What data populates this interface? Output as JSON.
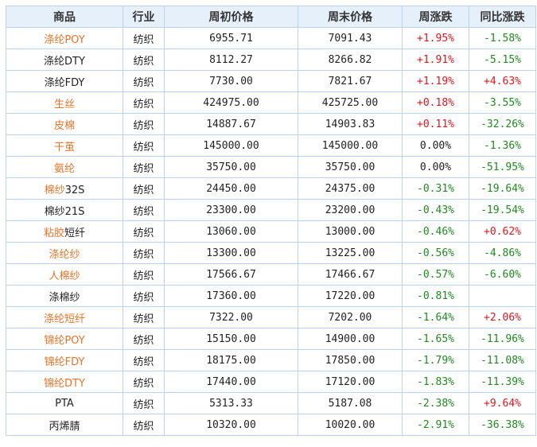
{
  "table": {
    "headers": [
      "商品",
      "行业",
      "周初价格",
      "周末价格",
      "周涨跌",
      "同比涨跌"
    ],
    "rows": [
      {
        "name": "涤纶POY",
        "name_link": true,
        "industry": "纺织",
        "start": "6955.71",
        "end": "7091.43",
        "week": "+1.95%",
        "week_dir": "up",
        "yoy": "-1.58%",
        "yoy_dir": "down"
      },
      {
        "name": "涤纶DTY",
        "name_link": false,
        "industry": "纺织",
        "start": "8112.27",
        "end": "8266.82",
        "week": "+1.91%",
        "week_dir": "up",
        "yoy": "-5.15%",
        "yoy_dir": "down"
      },
      {
        "name": "涤纶FDY",
        "name_link": false,
        "industry": "纺织",
        "start": "7730.00",
        "end": "7821.67",
        "week": "+1.19%",
        "week_dir": "up",
        "yoy": "+4.63%",
        "yoy_dir": "up"
      },
      {
        "name": "生丝",
        "name_link": true,
        "industry": "纺织",
        "start": "424975.00",
        "end": "425725.00",
        "week": "+0.18%",
        "week_dir": "up",
        "yoy": "-3.55%",
        "yoy_dir": "down"
      },
      {
        "name": "皮棉",
        "name_link": true,
        "industry": "纺织",
        "start": "14887.67",
        "end": "14903.83",
        "week": "+0.11%",
        "week_dir": "up",
        "yoy": "-32.26%",
        "yoy_dir": "down"
      },
      {
        "name": "干茧",
        "name_link": true,
        "industry": "纺织",
        "start": "145000.00",
        "end": "145000.00",
        "week": "0.00%",
        "week_dir": "flat",
        "yoy": "-1.36%",
        "yoy_dir": "down"
      },
      {
        "name": "氨纶",
        "name_link": true,
        "industry": "纺织",
        "start": "35750.00",
        "end": "35750.00",
        "week": "0.00%",
        "week_dir": "flat",
        "yoy": "-51.95%",
        "yoy_dir": "down"
      },
      {
        "name": "棉纱32S",
        "name_link": "partial",
        "name_a": "棉纱",
        "name_b": "32S",
        "industry": "纺织",
        "start": "24450.00",
        "end": "24375.00",
        "week": "-0.31%",
        "week_dir": "down",
        "yoy": "-19.64%",
        "yoy_dir": "down"
      },
      {
        "name": "棉纱21S",
        "name_link": false,
        "industry": "纺织",
        "start": "23300.00",
        "end": "23200.00",
        "week": "-0.43%",
        "week_dir": "down",
        "yoy": "-19.54%",
        "yoy_dir": "down"
      },
      {
        "name": "粘胶短纤",
        "name_link": "partial",
        "name_a": "粘胶",
        "name_b": "短纤",
        "industry": "纺织",
        "start": "13060.00",
        "end": "13000.00",
        "week": "-0.46%",
        "week_dir": "down",
        "yoy": "+0.62%",
        "yoy_dir": "up"
      },
      {
        "name": "涤纶纱",
        "name_link": true,
        "industry": "纺织",
        "start": "13300.00",
        "end": "13225.00",
        "week": "-0.56%",
        "week_dir": "down",
        "yoy": "-4.86%",
        "yoy_dir": "down"
      },
      {
        "name": "人棉纱",
        "name_link": true,
        "industry": "纺织",
        "start": "17566.67",
        "end": "17466.67",
        "week": "-0.57%",
        "week_dir": "down",
        "yoy": "-6.60%",
        "yoy_dir": "down"
      },
      {
        "name": "涤棉纱",
        "name_link": false,
        "industry": "纺织",
        "start": "17360.00",
        "end": "17220.00",
        "week": "-0.81%",
        "week_dir": "down",
        "yoy": "",
        "yoy_dir": "flat"
      },
      {
        "name": "涤纶短纤",
        "name_link": true,
        "industry": "纺织",
        "start": "7322.00",
        "end": "7202.00",
        "week": "-1.64%",
        "week_dir": "down",
        "yoy": "+2.06%",
        "yoy_dir": "up"
      },
      {
        "name": "锦纶POY",
        "name_link": true,
        "industry": "纺织",
        "start": "15150.00",
        "end": "14900.00",
        "week": "-1.65%",
        "week_dir": "down",
        "yoy": "-11.96%",
        "yoy_dir": "down"
      },
      {
        "name": "锦纶FDY",
        "name_link": true,
        "industry": "纺织",
        "start": "18175.00",
        "end": "17850.00",
        "week": "-1.79%",
        "week_dir": "down",
        "yoy": "-11.08%",
        "yoy_dir": "down"
      },
      {
        "name": "锦纶DTY",
        "name_link": true,
        "industry": "纺织",
        "start": "17440.00",
        "end": "17120.00",
        "week": "-1.83%",
        "week_dir": "down",
        "yoy": "-11.39%",
        "yoy_dir": "down"
      },
      {
        "name": "PTA",
        "name_link": false,
        "industry": "纺织",
        "start": "5313.33",
        "end": "5187.08",
        "week": "-2.38%",
        "week_dir": "down",
        "yoy": "+9.64%",
        "yoy_dir": "up"
      },
      {
        "name": "丙烯腈",
        "name_link": false,
        "industry": "纺织",
        "start": "10320.00",
        "end": "10020.00",
        "week": "-2.91%",
        "week_dir": "down",
        "yoy": "-36.38%",
        "yoy_dir": "down"
      }
    ]
  },
  "colors": {
    "link": "#e8732a",
    "up": "#e0161c",
    "down": "#1f8a1f",
    "header_bg": "#e6f0fa",
    "border": "#bcd3ea"
  }
}
